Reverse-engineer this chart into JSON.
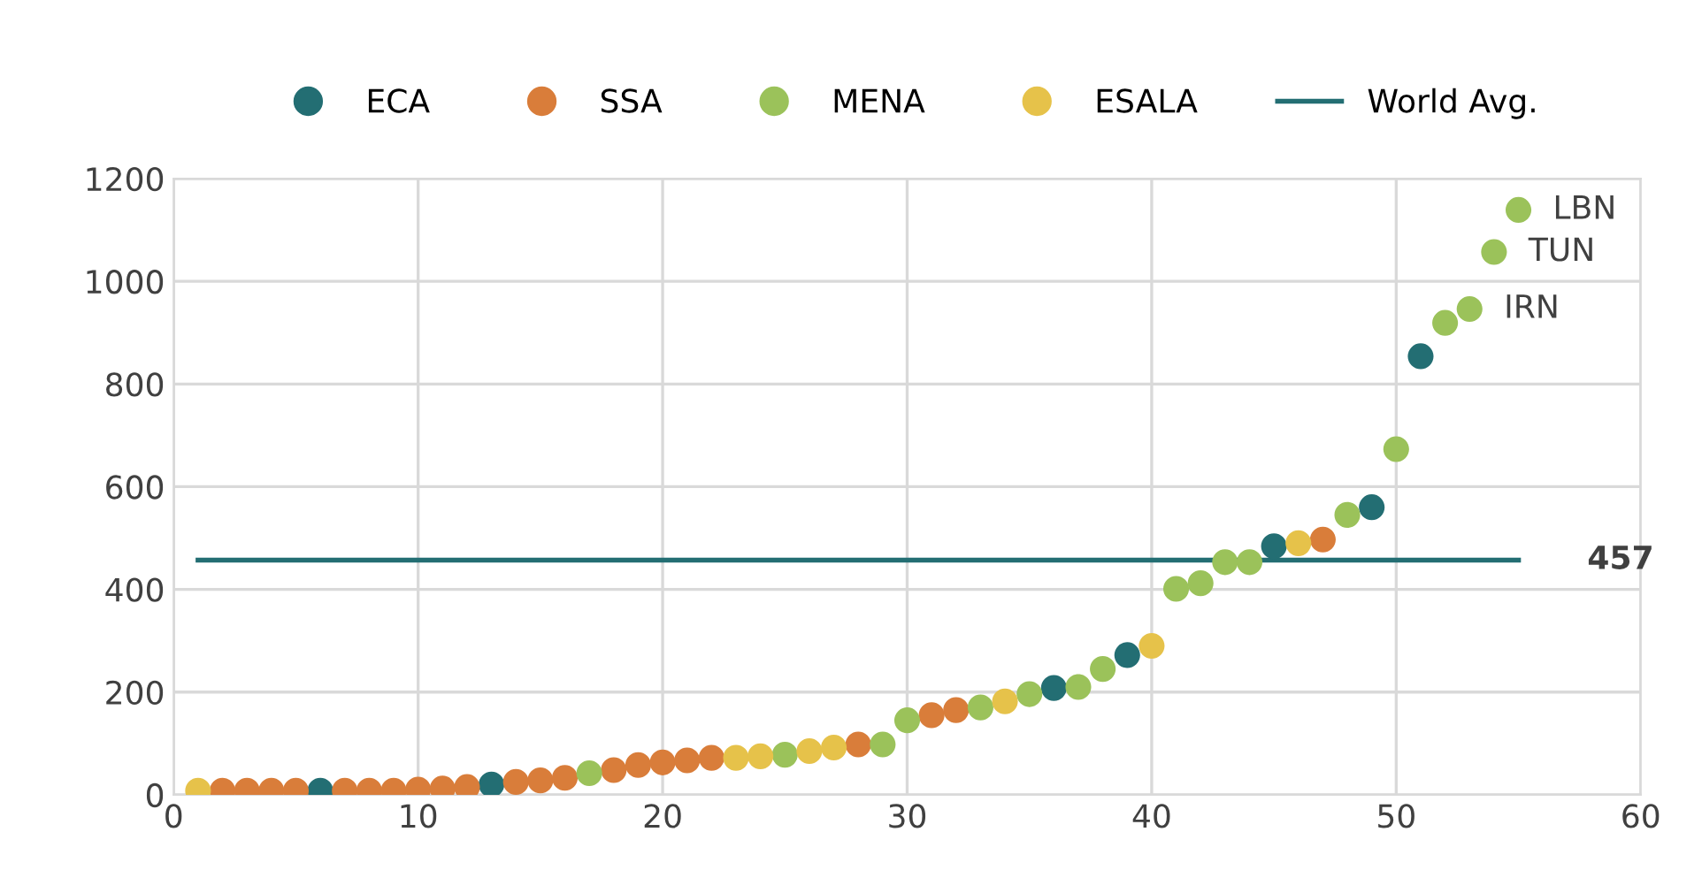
{
  "chart_data": {
    "type": "scatter",
    "grid": true,
    "legend": "top",
    "xlim": [
      0,
      60
    ],
    "xticks": [
      0,
      10,
      20,
      30,
      40,
      50,
      60
    ],
    "ylim": [
      0,
      1200
    ],
    "yticks": [
      0,
      200,
      400,
      600,
      800,
      1000,
      1200
    ],
    "series": [
      {
        "name": "ECA",
        "marker": "circle",
        "color": "#236e73",
        "x": [
          6,
          13,
          36,
          39,
          45,
          49,
          51
        ],
        "values": [
          8,
          20,
          208,
          272,
          484,
          560,
          854
        ]
      },
      {
        "name": "SSA",
        "marker": "circle",
        "color": "#d97d3a",
        "x": [
          2,
          3,
          4,
          5,
          7,
          8,
          9,
          10,
          11,
          12,
          14,
          15,
          16,
          18,
          19,
          20,
          21,
          22,
          28,
          31,
          32,
          47
        ],
        "values": [
          8,
          8,
          8,
          8,
          8,
          8,
          8,
          10,
          12,
          15,
          25,
          28,
          33,
          48,
          58,
          63,
          67,
          72,
          98,
          155,
          165,
          497
        ]
      },
      {
        "name": "MENA",
        "marker": "circle",
        "color": "#9bc25a",
        "x": [
          17,
          25,
          29,
          30,
          33,
          35,
          37,
          38,
          41,
          42,
          43,
          44,
          48,
          50,
          52,
          53,
          54,
          55
        ],
        "values": [
          42,
          78,
          98,
          145,
          170,
          196,
          210,
          245,
          401,
          412,
          453,
          453,
          545,
          673,
          919,
          946,
          1057,
          1139
        ]
      },
      {
        "name": "ESALA",
        "marker": "circle",
        "color": "#e6c24a",
        "x": [
          1,
          23,
          24,
          26,
          27,
          34,
          40,
          46
        ],
        "values": [
          8,
          72,
          75,
          85,
          92,
          182,
          290,
          490
        ]
      },
      {
        "name": "World Avg.",
        "type": "line",
        "marker": "none",
        "color": "#236e73",
        "x": [
          1,
          55
        ],
        "values": [
          457,
          457
        ]
      }
    ],
    "annotations": [
      {
        "text": "LBN",
        "x": 55,
        "y": 1139
      },
      {
        "text": "TUN",
        "x": 54,
        "y": 1057
      },
      {
        "text": "IRN",
        "x": 53,
        "y": 946
      },
      {
        "text": "457",
        "x": 55,
        "y": 457
      }
    ]
  }
}
